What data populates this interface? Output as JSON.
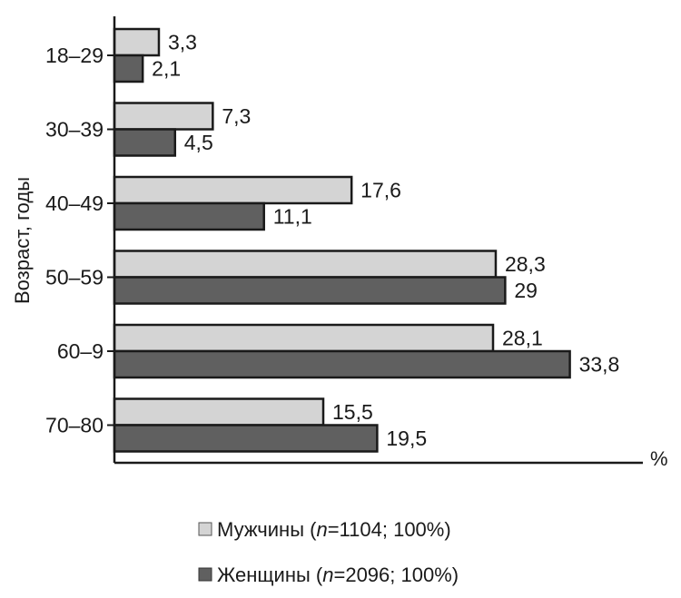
{
  "chart_data": {
    "type": "bar",
    "orientation": "horizontal",
    "categories": [
      "18–29",
      "30–39",
      "40–49",
      "50–59",
      "60–9",
      "70–80"
    ],
    "series": [
      {
        "name": "Мужчины",
        "legend_prefix": "Мужчины (",
        "legend_n_symbol": "n",
        "legend_suffix": "=1104; 100%)",
        "color": "#d4d4d4",
        "values": [
          3.3,
          7.3,
          17.6,
          28.3,
          28.1,
          15.5
        ],
        "labels": [
          "3,3",
          "7,3",
          "17,6",
          "28,3",
          "28,1",
          "15,5"
        ]
      },
      {
        "name": "Женщины",
        "legend_prefix": "Женщины (",
        "legend_n_symbol": "n",
        "legend_suffix": "=2096; 100%)",
        "color": "#606060",
        "values": [
          2.1,
          4.5,
          11.1,
          29,
          33.8,
          19.5
        ],
        "labels": [
          "2,1",
          "4,5",
          "11,1",
          "29",
          "33,8",
          "19,5"
        ]
      }
    ],
    "ylabel": "Возраст, годы",
    "xlabel": "%",
    "xlim": [
      0,
      38
    ],
    "grid": false,
    "legend_position": "bottom"
  }
}
